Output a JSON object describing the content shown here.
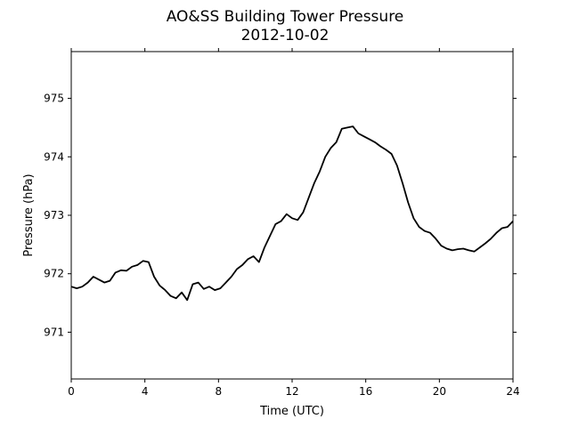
{
  "chart_data": {
    "type": "line",
    "title": "AO&SS Building Tower Pressure",
    "subtitle": "2012-10-02",
    "xlabel": "Time (UTC)",
    "ylabel": "Pressure (hPa)",
    "xlim": [
      0,
      24
    ],
    "ylim": [
      970.2,
      975.8
    ],
    "xticks": [
      0,
      4,
      8,
      12,
      16,
      20,
      24
    ],
    "xtick_labels": [
      "0",
      "4",
      "8",
      "12",
      "16",
      "20",
      "24"
    ],
    "yticks": [
      971,
      972,
      973,
      974,
      975
    ],
    "ytick_labels": [
      "971",
      "972",
      "973",
      "974",
      "975"
    ],
    "grid": false,
    "line_color": "#000000",
    "series": [
      {
        "x": [
          0,
          0.3,
          0.6,
          0.9,
          1.2,
          1.5,
          1.8,
          2.1,
          2.4,
          2.7,
          3.0,
          3.3,
          3.6,
          3.9,
          4.2,
          4.5,
          4.8,
          5.1,
          5.4,
          5.7,
          6.0,
          6.3,
          6.6,
          6.9,
          7.2,
          7.5,
          7.8,
          8.1,
          8.4,
          8.7,
          9.0,
          9.3,
          9.6,
          9.9,
          10.2,
          10.5,
          10.8,
          11.1,
          11.4,
          11.7,
          12.0,
          12.3,
          12.6,
          12.9,
          13.2,
          13.5,
          13.8,
          14.1,
          14.4,
          14.7,
          15.0,
          15.3,
          15.6,
          15.9,
          16.2,
          16.5,
          16.8,
          17.1,
          17.4,
          17.7,
          18.0,
          18.3,
          18.6,
          18.9,
          19.2,
          19.5,
          19.8,
          20.1,
          20.4,
          20.7,
          21.0,
          21.3,
          21.6,
          21.9,
          22.2,
          22.5,
          22.8,
          23.1,
          23.4,
          23.7,
          24.0
        ],
        "y": [
          971.78,
          971.75,
          971.78,
          971.85,
          971.95,
          971.9,
          971.85,
          971.88,
          972.02,
          972.06,
          972.05,
          972.12,
          972.15,
          972.22,
          972.2,
          971.95,
          971.8,
          971.72,
          971.62,
          971.58,
          971.68,
          971.55,
          971.82,
          971.85,
          971.74,
          971.78,
          971.72,
          971.75,
          971.85,
          971.95,
          972.08,
          972.15,
          972.25,
          972.3,
          972.2,
          972.45,
          972.65,
          972.85,
          972.9,
          973.02,
          972.95,
          972.92,
          973.05,
          973.3,
          973.55,
          973.75,
          974.0,
          974.15,
          974.25,
          974.48,
          974.5,
          974.52,
          974.4,
          974.35,
          974.3,
          974.25,
          974.18,
          974.12,
          974.05,
          973.85,
          973.55,
          973.22,
          972.95,
          972.8,
          972.73,
          972.7,
          972.6,
          972.48,
          972.43,
          972.4,
          972.42,
          972.43,
          972.4,
          972.38,
          972.45,
          972.52,
          972.6,
          972.7,
          972.78,
          972.8,
          972.9
        ]
      }
    ]
  }
}
